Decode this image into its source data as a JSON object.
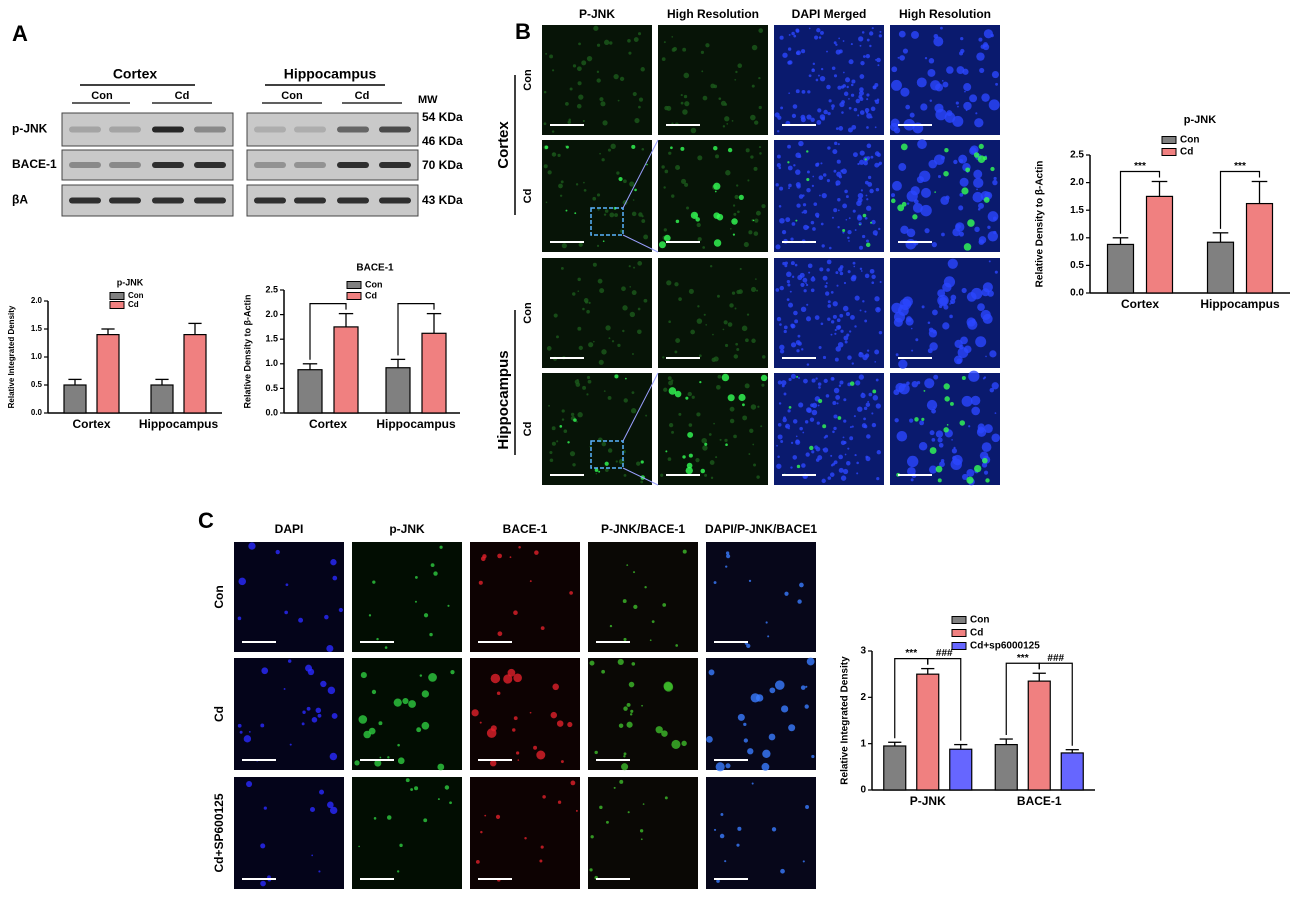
{
  "panel_labels": [
    "A",
    "B",
    "C"
  ],
  "blot": {
    "groups": [
      "Cortex",
      "Hippocampus"
    ],
    "lanes": [
      "Con",
      "Cd",
      "Con",
      "Cd"
    ],
    "mw_header": "MW",
    "rows": [
      "p-JNK",
      "BACE-1",
      "βA"
    ],
    "mw": [
      "54 KDa",
      "46 KDa",
      "70 KDa",
      "43 KDa"
    ]
  },
  "microscopy_b": {
    "columns": [
      "P-JNK",
      "High Resolution",
      "DAPI Merged",
      "High Resolution"
    ],
    "groups": [
      "Cortex",
      "Hippocampus"
    ],
    "rows": [
      "Con",
      "Cd",
      "Con",
      "Cd"
    ]
  },
  "microscopy_c": {
    "columns": [
      "DAPI",
      "p-JNK",
      "BACE-1",
      "P-JNK/BACE-1",
      "DAPI/P-JNK/BACE1"
    ],
    "rows": [
      "Con",
      "Cd",
      "Cd+SP600125"
    ]
  },
  "chart_data": [
    {
      "type": "bar",
      "title": "p-JNK",
      "ylabel": "Relative Integrated Density",
      "categories": [
        "Cortex",
        "Hippocampus"
      ],
      "series": [
        {
          "name": "Con",
          "color": "#808080",
          "values": [
            0.5,
            0.5
          ],
          "errors": [
            0.1,
            0.1
          ]
        },
        {
          "name": "Cd",
          "color": "#f08080",
          "values": [
            1.4,
            1.4
          ],
          "errors": [
            0.1,
            0.2
          ]
        }
      ],
      "ylim": [
        0,
        2
      ],
      "yticks": [
        {
          "value": 0,
          "label": "0.0"
        },
        {
          "value": 0.5,
          "label": "0.5"
        },
        {
          "value": 1,
          "label": "1.0"
        },
        {
          "value": 1.5,
          "label": "1.5"
        },
        {
          "value": 2,
          "label": "2.0"
        }
      ],
      "brackets": false,
      "legend": "top"
    },
    {
      "type": "bar",
      "title": "BACE-1",
      "ylabel": "Relative Density to β-Actin",
      "categories": [
        "Cortex",
        "Hippocampus"
      ],
      "series": [
        {
          "name": "Con",
          "color": "#808080",
          "values": [
            0.88,
            0.92
          ],
          "errors": [
            0.12,
            0.17
          ]
        },
        {
          "name": "Cd",
          "color": "#f08080",
          "values": [
            1.75,
            1.62
          ],
          "errors": [
            0.27,
            0.4
          ]
        }
      ],
      "ylim": [
        0,
        2.5
      ],
      "yticks": [
        {
          "value": 0,
          "label": "0.0"
        },
        {
          "value": 0.5,
          "label": "0.5"
        },
        {
          "value": 1,
          "label": "1.0"
        },
        {
          "value": 1.5,
          "label": "1.5"
        },
        {
          "value": 2,
          "label": "2.0"
        },
        {
          "value": 2.5,
          "label": "2.5"
        }
      ],
      "brackets": true,
      "legend": "top"
    },
    {
      "type": "bar",
      "title": "p-JNK",
      "ylabel": "Relative Density to β-Actin",
      "categories": [
        "Cortex",
        "Hippocampus"
      ],
      "series": [
        {
          "name": "Con",
          "color": "#808080",
          "values": [
            0.88,
            0.92
          ],
          "errors": [
            0.12,
            0.17
          ]
        },
        {
          "name": "Cd",
          "color": "#f08080",
          "values": [
            1.75,
            1.62
          ],
          "errors": [
            0.27,
            0.4
          ]
        }
      ],
      "ylim": [
        0,
        2.5
      ],
      "yticks": [
        {
          "value": 0,
          "label": "0.0"
        },
        {
          "value": 0.5,
          "label": "0.5"
        },
        {
          "value": 1,
          "label": "1.0"
        },
        {
          "value": 1.5,
          "label": "1.5"
        },
        {
          "value": 2,
          "label": "2.0"
        },
        {
          "value": 2.5,
          "label": "2.5"
        }
      ],
      "brackets": true,
      "annotations": [
        "***",
        "***"
      ],
      "legend": "top"
    },
    {
      "type": "bar",
      "ylabel": "Relative Integrated Density",
      "categories": [
        "P-JNK",
        "BACE-1"
      ],
      "series": [
        {
          "name": "Con",
          "color": "#808080",
          "values": [
            0.95,
            0.98
          ],
          "errors": [
            0.08,
            0.12
          ]
        },
        {
          "name": "Cd",
          "color": "#f08080",
          "values": [
            2.5,
            2.35
          ],
          "errors": [
            0.12,
            0.17
          ]
        },
        {
          "name": "Cd+sp6000125",
          "color": "#6666ff",
          "values": [
            0.88,
            0.8
          ],
          "errors": [
            0.1,
            0.07
          ]
        }
      ],
      "ylim": [
        0,
        3
      ],
      "yticks": [
        0,
        1,
        2,
        3
      ],
      "brackets": true,
      "annotations": [
        "***",
        "###",
        "***",
        "###"
      ],
      "legend": "top"
    }
  ]
}
